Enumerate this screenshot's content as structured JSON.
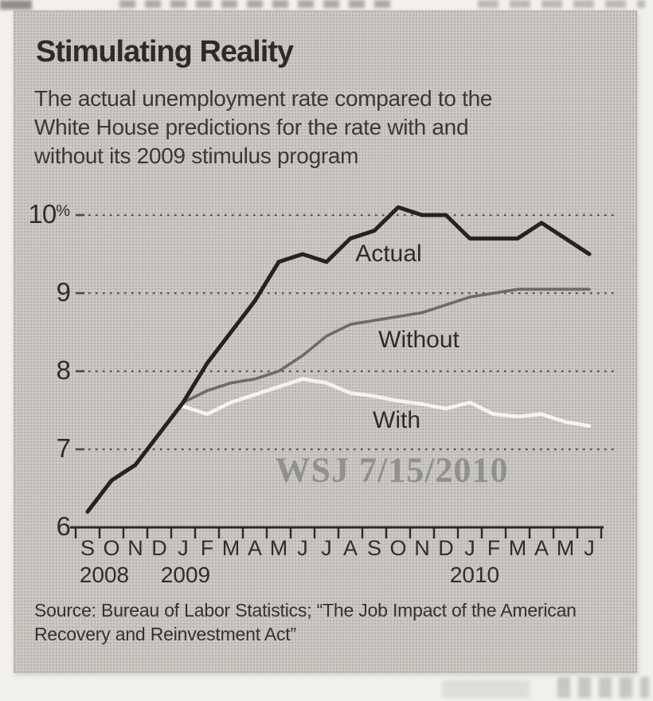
{
  "clipping": {
    "title": "Stimulating Reality",
    "subtitle_lines": [
      "The actual unemployment rate compared to the",
      "White House predictions for the rate with and",
      "without its 2009 stimulus program"
    ],
    "source_lines": [
      "Source: Bureau of Labor Statistics; “The Job Impact of the American",
      "Recovery and Reinvestment Act”"
    ],
    "watermark": "WSJ 7/15/2010"
  },
  "chart_data": {
    "type": "line",
    "title": "Stimulating Reality",
    "subtitle": "The actual unemployment rate compared to the White House predictions for the rate with and without its 2009 stimulus program",
    "unit": "%",
    "ylim": [
      6,
      10.5
    ],
    "grid": "dotted horizontal",
    "gridline_values": [
      7,
      8,
      9,
      10
    ],
    "yticks": [
      {
        "label": "10%",
        "value": 10
      },
      {
        "label": "9",
        "value": 9
      },
      {
        "label": "8",
        "value": 8
      },
      {
        "label": "7",
        "value": 7
      },
      {
        "label": "6",
        "value": 6
      }
    ],
    "x_months": [
      "S",
      "O",
      "N",
      "D",
      "J",
      "F",
      "M",
      "A",
      "M",
      "J",
      "J",
      "A",
      "S",
      "O",
      "N",
      "D",
      "J",
      "F",
      "M",
      "A",
      "M",
      "J"
    ],
    "x_range_note": "Sep 2008 through Jun 2010, monthly",
    "year_labels": [
      {
        "text": "2008",
        "month_index": 0.7
      },
      {
        "text": "2009",
        "month_index": 4.1
      },
      {
        "text": "2010",
        "month_index": 16.2
      }
    ],
    "legend_position": "inline-labels-on-lines",
    "series": [
      {
        "name": "Actual",
        "color": "#26231f",
        "start_index": 0,
        "values": [
          6.2,
          6.6,
          6.8,
          7.2,
          7.6,
          8.1,
          8.5,
          8.9,
          9.4,
          9.5,
          9.4,
          9.7,
          9.8,
          10.1,
          10.0,
          10.0,
          9.7,
          9.7,
          9.7,
          9.9,
          9.7,
          9.5
        ]
      },
      {
        "name": "Without",
        "color": "#6e6b66",
        "start_index": 4,
        "values": [
          7.6,
          7.75,
          7.85,
          7.9,
          8.0,
          8.2,
          8.45,
          8.6,
          8.65,
          8.7,
          8.75,
          8.85,
          8.95,
          9.0,
          9.05,
          9.05,
          9.05,
          9.05
        ]
      },
      {
        "name": "With",
        "color": "#f4f3ef",
        "start_index": 4,
        "values": [
          7.55,
          7.45,
          7.6,
          7.7,
          7.8,
          7.9,
          7.85,
          7.72,
          7.68,
          7.62,
          7.58,
          7.52,
          7.6,
          7.45,
          7.42,
          7.45,
          7.35,
          7.3
        ]
      }
    ]
  }
}
